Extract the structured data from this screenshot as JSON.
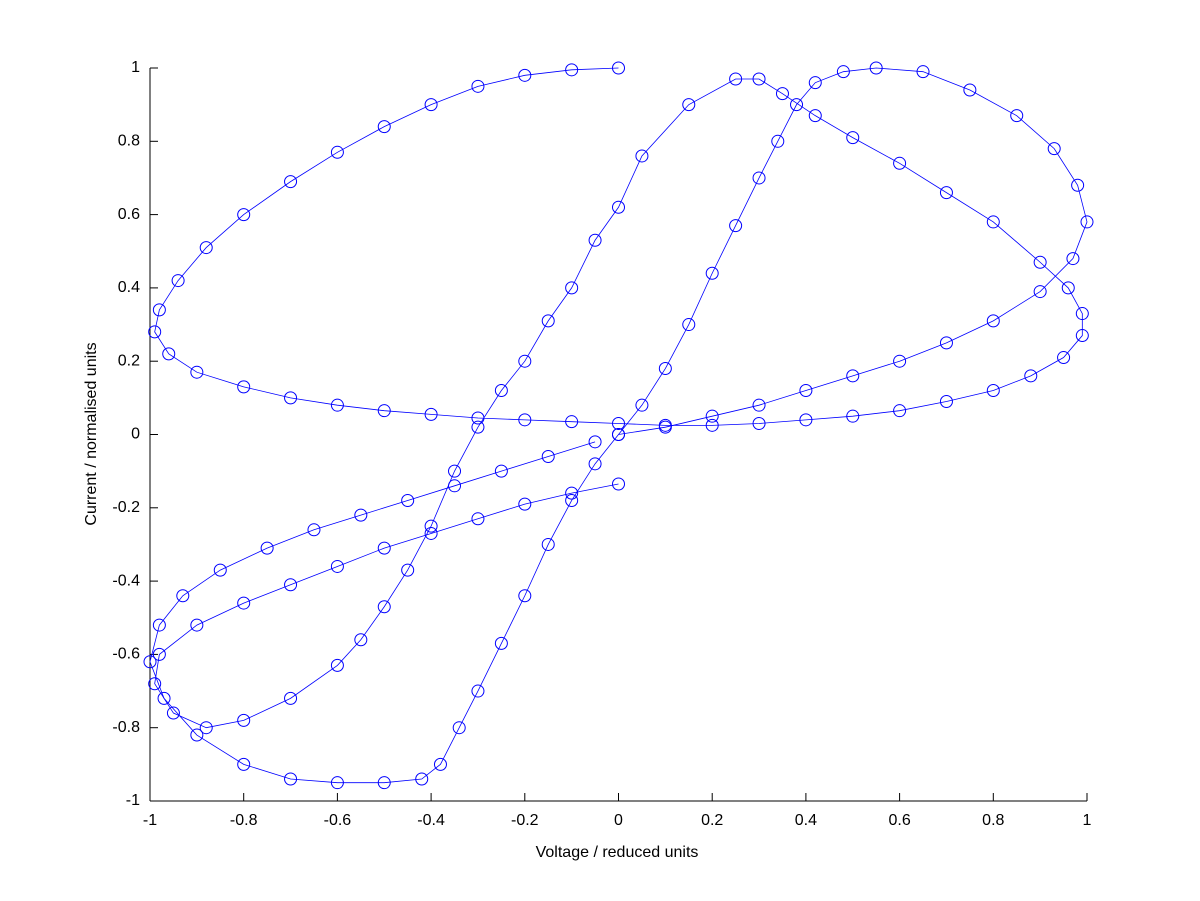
{
  "chart_data": {
    "type": "line",
    "marker": "circle",
    "x_label": "Voltage / reduced units",
    "y_label": "Current / normalised units",
    "xlim": [
      -1,
      1
    ],
    "ylim": [
      -1,
      1
    ],
    "xticks": [
      -1,
      -0.8,
      -0.6,
      -0.4,
      -0.2,
      0,
      0.2,
      0.4,
      0.6,
      0.8,
      1
    ],
    "yticks": [
      -1,
      -0.8,
      -0.6,
      -0.4,
      -0.2,
      0,
      0.2,
      0.4,
      0.6,
      0.8,
      1
    ],
    "series": [
      {
        "color": "#0000ff",
        "x": [
          0,
          -0.1,
          -0.2,
          -0.3,
          -0.4,
          -0.5,
          -0.6,
          -0.7,
          -0.8,
          -0.88,
          -0.94,
          -0.98,
          -0.99,
          -0.96,
          -0.9,
          -0.8,
          -0.7,
          -0.6,
          -0.5,
          -0.4,
          -0.3,
          -0.2,
          -0.1,
          0,
          0.1,
          0.2,
          0.3,
          0.4,
          0.5,
          0.6,
          0.7,
          0.8,
          0.88,
          0.95,
          0.99,
          0.99,
          0.96,
          0.9,
          0.8,
          0.7,
          0.6,
          0.5,
          0.42,
          0.35,
          0.3,
          0.25,
          0.15,
          0.05,
          0,
          -0.05,
          -0.1,
          -0.15,
          -0.2,
          -0.25,
          -0.3,
          -0.35,
          -0.4,
          -0.45,
          -0.5,
          -0.55,
          -0.6,
          -0.7,
          -0.8,
          -0.88,
          -0.95,
          -0.99,
          -0.98,
          -0.9,
          -0.8,
          -0.7,
          -0.6,
          -0.5,
          -0.4,
          -0.3,
          -0.2,
          -0.1,
          0
        ],
        "values": [
          1,
          0.995,
          0.98,
          0.95,
          0.9,
          0.84,
          0.77,
          0.69,
          0.6,
          0.51,
          0.42,
          0.34,
          0.28,
          0.22,
          0.17,
          0.13,
          0.1,
          0.08,
          0.065,
          0.055,
          0.045,
          0.04,
          0.035,
          0.03,
          0.025,
          0.025,
          0.03,
          0.04,
          0.05,
          0.065,
          0.09,
          0.12,
          0.16,
          0.21,
          0.27,
          0.33,
          0.4,
          0.47,
          0.58,
          0.66,
          0.74,
          0.81,
          0.87,
          0.93,
          0.97,
          0.97,
          0.9,
          0.76,
          0.62,
          0.53,
          0.4,
          0.31,
          0.2,
          0.12,
          0.02,
          -0.1,
          -0.25,
          -0.37,
          -0.47,
          -0.56,
          -0.63,
          -0.72,
          -0.78,
          -0.8,
          -0.76,
          -0.68,
          -0.6,
          -0.52,
          -0.46,
          -0.41,
          -0.36,
          -0.31,
          -0.27,
          -0.23,
          -0.19,
          -0.16,
          -0.135
        ]
      },
      {
        "color": "#0000ff",
        "x": [
          0,
          0.1,
          0.2,
          0.3,
          0.4,
          0.5,
          0.6,
          0.7,
          0.8,
          0.9,
          0.97,
          1,
          0.98,
          0.93,
          0.85,
          0.75,
          0.65,
          0.55,
          0.48,
          0.42,
          0.38,
          0.34,
          0.3,
          0.25,
          0.2,
          0.15,
          0.1,
          0.05,
          0,
          -0.05,
          -0.1,
          -0.15,
          -0.2,
          -0.25,
          -0.3,
          -0.34,
          -0.38,
          -0.42,
          -0.5,
          -0.6,
          -0.7,
          -0.8,
          -0.9,
          -0.97,
          -1,
          -0.98,
          -0.93,
          -0.85,
          -0.75,
          -0.65,
          -0.55,
          -0.45,
          -0.35,
          -0.25,
          -0.15,
          -0.05
        ],
        "values": [
          0,
          0.02,
          0.05,
          0.08,
          0.12,
          0.16,
          0.2,
          0.25,
          0.31,
          0.39,
          0.48,
          0.58,
          0.68,
          0.78,
          0.87,
          0.94,
          0.99,
          1,
          0.99,
          0.96,
          0.9,
          0.8,
          0.7,
          0.57,
          0.44,
          0.3,
          0.18,
          0.08,
          0,
          -0.08,
          -0.18,
          -0.3,
          -0.44,
          -0.57,
          -0.7,
          -0.8,
          -0.9,
          -0.94,
          -0.95,
          -0.95,
          -0.94,
          -0.9,
          -0.82,
          -0.72,
          -0.62,
          -0.52,
          -0.44,
          -0.37,
          -0.31,
          -0.26,
          -0.22,
          -0.18,
          -0.14,
          -0.1,
          -0.06,
          -0.02
        ]
      }
    ]
  }
}
